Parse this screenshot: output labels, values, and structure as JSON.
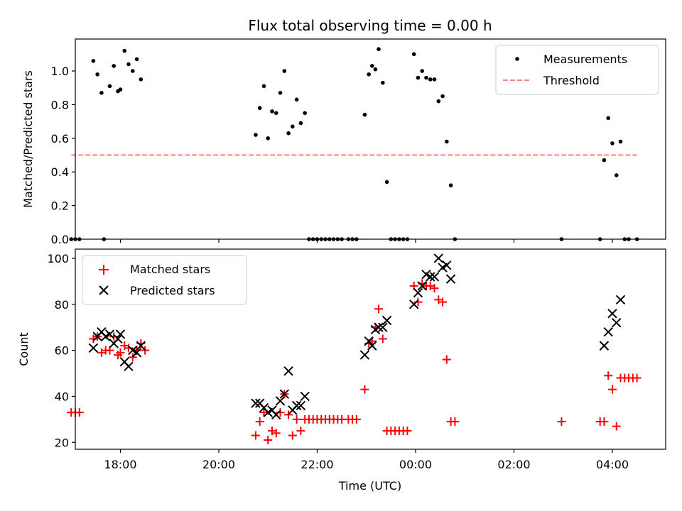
{
  "chart_data": [
    {
      "type": "scatter",
      "title": "Flux total observing time = 0.00 h",
      "xlabel": "",
      "ylabel": "Matched/Predicted stars",
      "x_unit": "time (UTC)",
      "xlim": [
        "17:05",
        "05:05"
      ],
      "ylim": [
        0,
        1.19
      ],
      "yticks": [
        0.0,
        0.2,
        0.4,
        0.6,
        0.8,
        1.0
      ],
      "grid": false,
      "legend_position": "top-right",
      "series": [
        {
          "name": "Measurements",
          "marker": "dot",
          "color": "#000000",
          "points": [
            {
              "x": "17:00",
              "y": 0.0
            },
            {
              "x": "17:05",
              "y": 0.0
            },
            {
              "x": "17:10",
              "y": 0.0
            },
            {
              "x": "17:27",
              "y": 1.06
            },
            {
              "x": "17:32",
              "y": 0.98
            },
            {
              "x": "17:37",
              "y": 0.87
            },
            {
              "x": "17:40",
              "y": 0.0
            },
            {
              "x": "17:47",
              "y": 0.91
            },
            {
              "x": "17:52",
              "y": 1.03
            },
            {
              "x": "17:57",
              "y": 0.88
            },
            {
              "x": "18:00",
              "y": 0.89
            },
            {
              "x": "18:05",
              "y": 1.12
            },
            {
              "x": "18:10",
              "y": 1.04
            },
            {
              "x": "18:15",
              "y": 1.0
            },
            {
              "x": "18:20",
              "y": 1.07
            },
            {
              "x": "18:25",
              "y": 0.95
            },
            {
              "x": "20:45",
              "y": 0.62
            },
            {
              "x": "20:50",
              "y": 0.78
            },
            {
              "x": "20:55",
              "y": 0.91
            },
            {
              "x": "21:00",
              "y": 0.6
            },
            {
              "x": "21:05",
              "y": 0.76
            },
            {
              "x": "21:10",
              "y": 0.75
            },
            {
              "x": "21:15",
              "y": 0.87
            },
            {
              "x": "21:20",
              "y": 1.0
            },
            {
              "x": "21:25",
              "y": 0.63
            },
            {
              "x": "21:30",
              "y": 0.67
            },
            {
              "x": "21:35",
              "y": 0.83
            },
            {
              "x": "21:40",
              "y": 0.69
            },
            {
              "x": "21:45",
              "y": 0.75
            },
            {
              "x": "21:50",
              "y": 0.0
            },
            {
              "x": "21:55",
              "y": 0.0
            },
            {
              "x": "22:00",
              "y": 0.0
            },
            {
              "x": "22:05",
              "y": 0.0
            },
            {
              "x": "22:10",
              "y": 0.0
            },
            {
              "x": "22:15",
              "y": 0.0
            },
            {
              "x": "22:20",
              "y": 0.0
            },
            {
              "x": "22:25",
              "y": 0.0
            },
            {
              "x": "22:30",
              "y": 0.0
            },
            {
              "x": "22:38",
              "y": 0.0
            },
            {
              "x": "22:43",
              "y": 0.0
            },
            {
              "x": "22:48",
              "y": 0.0
            },
            {
              "x": "22:58",
              "y": 0.74
            },
            {
              "x": "23:03",
              "y": 0.98
            },
            {
              "x": "23:07",
              "y": 1.03
            },
            {
              "x": "23:11",
              "y": 1.01
            },
            {
              "x": "23:15",
              "y": 1.13
            },
            {
              "x": "23:20",
              "y": 0.93
            },
            {
              "x": "23:25",
              "y": 0.34
            },
            {
              "x": "23:30",
              "y": 0.0
            },
            {
              "x": "23:35",
              "y": 0.0
            },
            {
              "x": "23:40",
              "y": 0.0
            },
            {
              "x": "23:45",
              "y": 0.0
            },
            {
              "x": "23:50",
              "y": 0.0
            },
            {
              "x": "23:58",
              "y": 1.1
            },
            {
              "x": "00:03",
              "y": 0.96
            },
            {
              "x": "00:08",
              "y": 1.0
            },
            {
              "x": "00:13",
              "y": 0.96
            },
            {
              "x": "00:18",
              "y": 0.95
            },
            {
              "x": "00:23",
              "y": 0.95
            },
            {
              "x": "00:28",
              "y": 0.82
            },
            {
              "x": "00:33",
              "y": 0.85
            },
            {
              "x": "00:38",
              "y": 0.58
            },
            {
              "x": "00:43",
              "y": 0.32
            },
            {
              "x": "00:48",
              "y": 0.0
            },
            {
              "x": "02:58",
              "y": 0.0
            },
            {
              "x": "03:45",
              "y": 0.0
            },
            {
              "x": "03:50",
              "y": 0.47
            },
            {
              "x": "03:55",
              "y": 0.72
            },
            {
              "x": "04:00",
              "y": 0.57
            },
            {
              "x": "04:05",
              "y": 0.38
            },
            {
              "x": "04:10",
              "y": 0.58
            },
            {
              "x": "04:15",
              "y": 0.0
            },
            {
              "x": "04:20",
              "y": 0.0
            },
            {
              "x": "04:30",
              "y": 0.0
            }
          ]
        },
        {
          "name": "Threshold",
          "marker": "dashed-line",
          "color": "#ff7f7f",
          "points": [
            {
              "x": "17:00",
              "y": 0.5
            },
            {
              "x": "04:30",
              "y": 0.5
            }
          ]
        }
      ]
    },
    {
      "type": "scatter",
      "title": "",
      "xlabel": "Time (UTC)",
      "ylabel": "Count",
      "x_unit": "time (UTC)",
      "xlim": [
        "17:05",
        "05:05"
      ],
      "ylim": [
        17,
        104
      ],
      "yticks": [
        20,
        40,
        60,
        80,
        100
      ],
      "xticks": [
        "18:00",
        "20:00",
        "22:00",
        "00:00",
        "02:00",
        "04:00"
      ],
      "grid": false,
      "legend_position": "top-left",
      "series": [
        {
          "name": "Matched stars",
          "marker": "plus",
          "color": "#ff0000",
          "points": [
            {
              "x": "17:00",
              "y": 33
            },
            {
              "x": "17:05",
              "y": 33
            },
            {
              "x": "17:10",
              "y": 33
            },
            {
              "x": "17:27",
              "y": 65
            },
            {
              "x": "17:32",
              "y": 66
            },
            {
              "x": "17:37",
              "y": 59
            },
            {
              "x": "17:42",
              "y": 60
            },
            {
              "x": "17:47",
              "y": 60
            },
            {
              "x": "17:52",
              "y": 66
            },
            {
              "x": "17:57",
              "y": 58
            },
            {
              "x": "18:00",
              "y": 59
            },
            {
              "x": "18:05",
              "y": 62
            },
            {
              "x": "18:10",
              "y": 61
            },
            {
              "x": "18:15",
              "y": 57
            },
            {
              "x": "18:20",
              "y": 60
            },
            {
              "x": "18:25",
              "y": 63
            },
            {
              "x": "18:30",
              "y": 60
            },
            {
              "x": "20:45",
              "y": 23
            },
            {
              "x": "20:50",
              "y": 29
            },
            {
              "x": "20:55",
              "y": 33
            },
            {
              "x": "21:00",
              "y": 21
            },
            {
              "x": "21:05",
              "y": 25
            },
            {
              "x": "21:10",
              "y": 24
            },
            {
              "x": "21:15",
              "y": 33
            },
            {
              "x": "21:20",
              "y": 41
            },
            {
              "x": "21:25",
              "y": 32
            },
            {
              "x": "21:30",
              "y": 23
            },
            {
              "x": "21:35",
              "y": 30
            },
            {
              "x": "21:40",
              "y": 25
            },
            {
              "x": "21:45",
              "y": 30
            },
            {
              "x": "21:50",
              "y": 30
            },
            {
              "x": "21:55",
              "y": 30
            },
            {
              "x": "22:00",
              "y": 30
            },
            {
              "x": "22:05",
              "y": 30
            },
            {
              "x": "22:10",
              "y": 30
            },
            {
              "x": "22:15",
              "y": 30
            },
            {
              "x": "22:20",
              "y": 30
            },
            {
              "x": "22:25",
              "y": 30
            },
            {
              "x": "22:30",
              "y": 30
            },
            {
              "x": "22:38",
              "y": 30
            },
            {
              "x": "22:43",
              "y": 30
            },
            {
              "x": "22:48",
              "y": 30
            },
            {
              "x": "22:58",
              "y": 43
            },
            {
              "x": "23:03",
              "y": 63
            },
            {
              "x": "23:07",
              "y": 64
            },
            {
              "x": "23:11",
              "y": 70
            },
            {
              "x": "23:15",
              "y": 78
            },
            {
              "x": "23:20",
              "y": 65
            },
            {
              "x": "23:25",
              "y": 25
            },
            {
              "x": "23:30",
              "y": 25
            },
            {
              "x": "23:35",
              "y": 25
            },
            {
              "x": "23:40",
              "y": 25
            },
            {
              "x": "23:45",
              "y": 25
            },
            {
              "x": "23:50",
              "y": 25
            },
            {
              "x": "23:58",
              "y": 88
            },
            {
              "x": "00:03",
              "y": 81
            },
            {
              "x": "00:08",
              "y": 89
            },
            {
              "x": "00:13",
              "y": 88
            },
            {
              "x": "00:18",
              "y": 88
            },
            {
              "x": "00:23",
              "y": 87
            },
            {
              "x": "00:28",
              "y": 82
            },
            {
              "x": "00:33",
              "y": 81
            },
            {
              "x": "00:38",
              "y": 56
            },
            {
              "x": "00:43",
              "y": 29
            },
            {
              "x": "00:48",
              "y": 29
            },
            {
              "x": "02:58",
              "y": 29
            },
            {
              "x": "03:45",
              "y": 29
            },
            {
              "x": "03:50",
              "y": 29
            },
            {
              "x": "03:55",
              "y": 49
            },
            {
              "x": "04:00",
              "y": 43
            },
            {
              "x": "04:05",
              "y": 27
            },
            {
              "x": "04:10",
              "y": 48
            },
            {
              "x": "04:15",
              "y": 48
            },
            {
              "x": "04:20",
              "y": 48
            },
            {
              "x": "04:25",
              "y": 48
            },
            {
              "x": "04:30",
              "y": 48
            }
          ]
        },
        {
          "name": "Predicted stars",
          "marker": "x",
          "color": "#000000",
          "points": [
            {
              "x": "17:27",
              "y": 61
            },
            {
              "x": "17:32",
              "y": 66
            },
            {
              "x": "17:37",
              "y": 68
            },
            {
              "x": "17:42",
              "y": 66
            },
            {
              "x": "17:47",
              "y": 67
            },
            {
              "x": "17:52",
              "y": 63
            },
            {
              "x": "17:57",
              "y": 65
            },
            {
              "x": "18:00",
              "y": 67
            },
            {
              "x": "18:05",
              "y": 55
            },
            {
              "x": "18:10",
              "y": 53
            },
            {
              "x": "18:15",
              "y": 60
            },
            {
              "x": "18:20",
              "y": 59
            },
            {
              "x": "18:25",
              "y": 62
            },
            {
              "x": "20:45",
              "y": 37
            },
            {
              "x": "20:50",
              "y": 37
            },
            {
              "x": "20:55",
              "y": 35
            },
            {
              "x": "21:00",
              "y": 33
            },
            {
              "x": "21:05",
              "y": 34
            },
            {
              "x": "21:10",
              "y": 32
            },
            {
              "x": "21:15",
              "y": 38
            },
            {
              "x": "21:20",
              "y": 41
            },
            {
              "x": "21:25",
              "y": 51
            },
            {
              "x": "21:30",
              "y": 34
            },
            {
              "x": "21:35",
              "y": 36
            },
            {
              "x": "21:40",
              "y": 36
            },
            {
              "x": "21:45",
              "y": 40
            },
            {
              "x": "22:58",
              "y": 58
            },
            {
              "x": "23:03",
              "y": 64
            },
            {
              "x": "23:07",
              "y": 62
            },
            {
              "x": "23:11",
              "y": 69
            },
            {
              "x": "23:15",
              "y": 70
            },
            {
              "x": "23:20",
              "y": 70
            },
            {
              "x": "23:25",
              "y": 73
            },
            {
              "x": "23:58",
              "y": 80
            },
            {
              "x": "00:03",
              "y": 85
            },
            {
              "x": "00:08",
              "y": 88
            },
            {
              "x": "00:13",
              "y": 93
            },
            {
              "x": "00:18",
              "y": 92
            },
            {
              "x": "00:23",
              "y": 92
            },
            {
              "x": "00:28",
              "y": 100
            },
            {
              "x": "00:33",
              "y": 96
            },
            {
              "x": "00:38",
              "y": 97
            },
            {
              "x": "00:43",
              "y": 91
            },
            {
              "x": "03:50",
              "y": 62
            },
            {
              "x": "03:55",
              "y": 68
            },
            {
              "x": "04:00",
              "y": 76
            },
            {
              "x": "04:05",
              "y": 72
            },
            {
              "x": "04:10",
              "y": 82
            }
          ]
        }
      ]
    }
  ]
}
